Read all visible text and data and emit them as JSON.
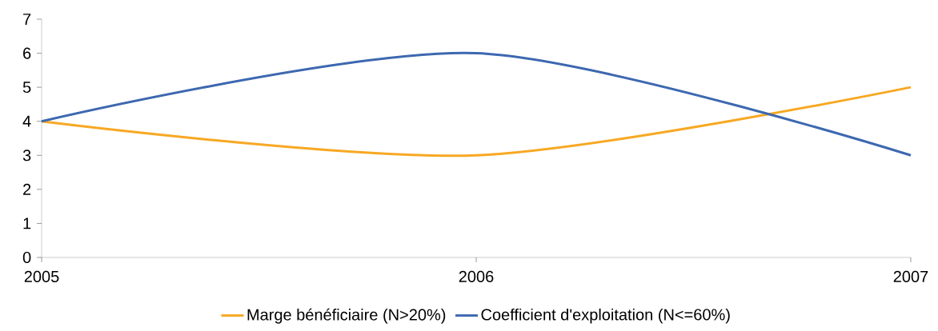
{
  "chart_data": {
    "type": "line",
    "x": [
      2005,
      2006,
      2007
    ],
    "series": [
      {
        "name": "Marge bénéficiaire (N>20%)",
        "color": "#f7a823",
        "values": [
          4,
          3,
          5
        ]
      },
      {
        "name": "Coefficient d'exploitation  (N<=60%)",
        "color": "#3d68b0",
        "values": [
          4,
          6,
          3
        ]
      }
    ],
    "xlim": [
      2005,
      2007
    ],
    "xticks": [
      2005,
      2006,
      2007
    ],
    "ylim": [
      0,
      7
    ],
    "yticks": [
      0,
      1,
      2,
      3,
      4,
      5,
      6,
      7
    ],
    "grid": false,
    "legend": "bottom",
    "marker": "none",
    "line_style": "solid"
  }
}
